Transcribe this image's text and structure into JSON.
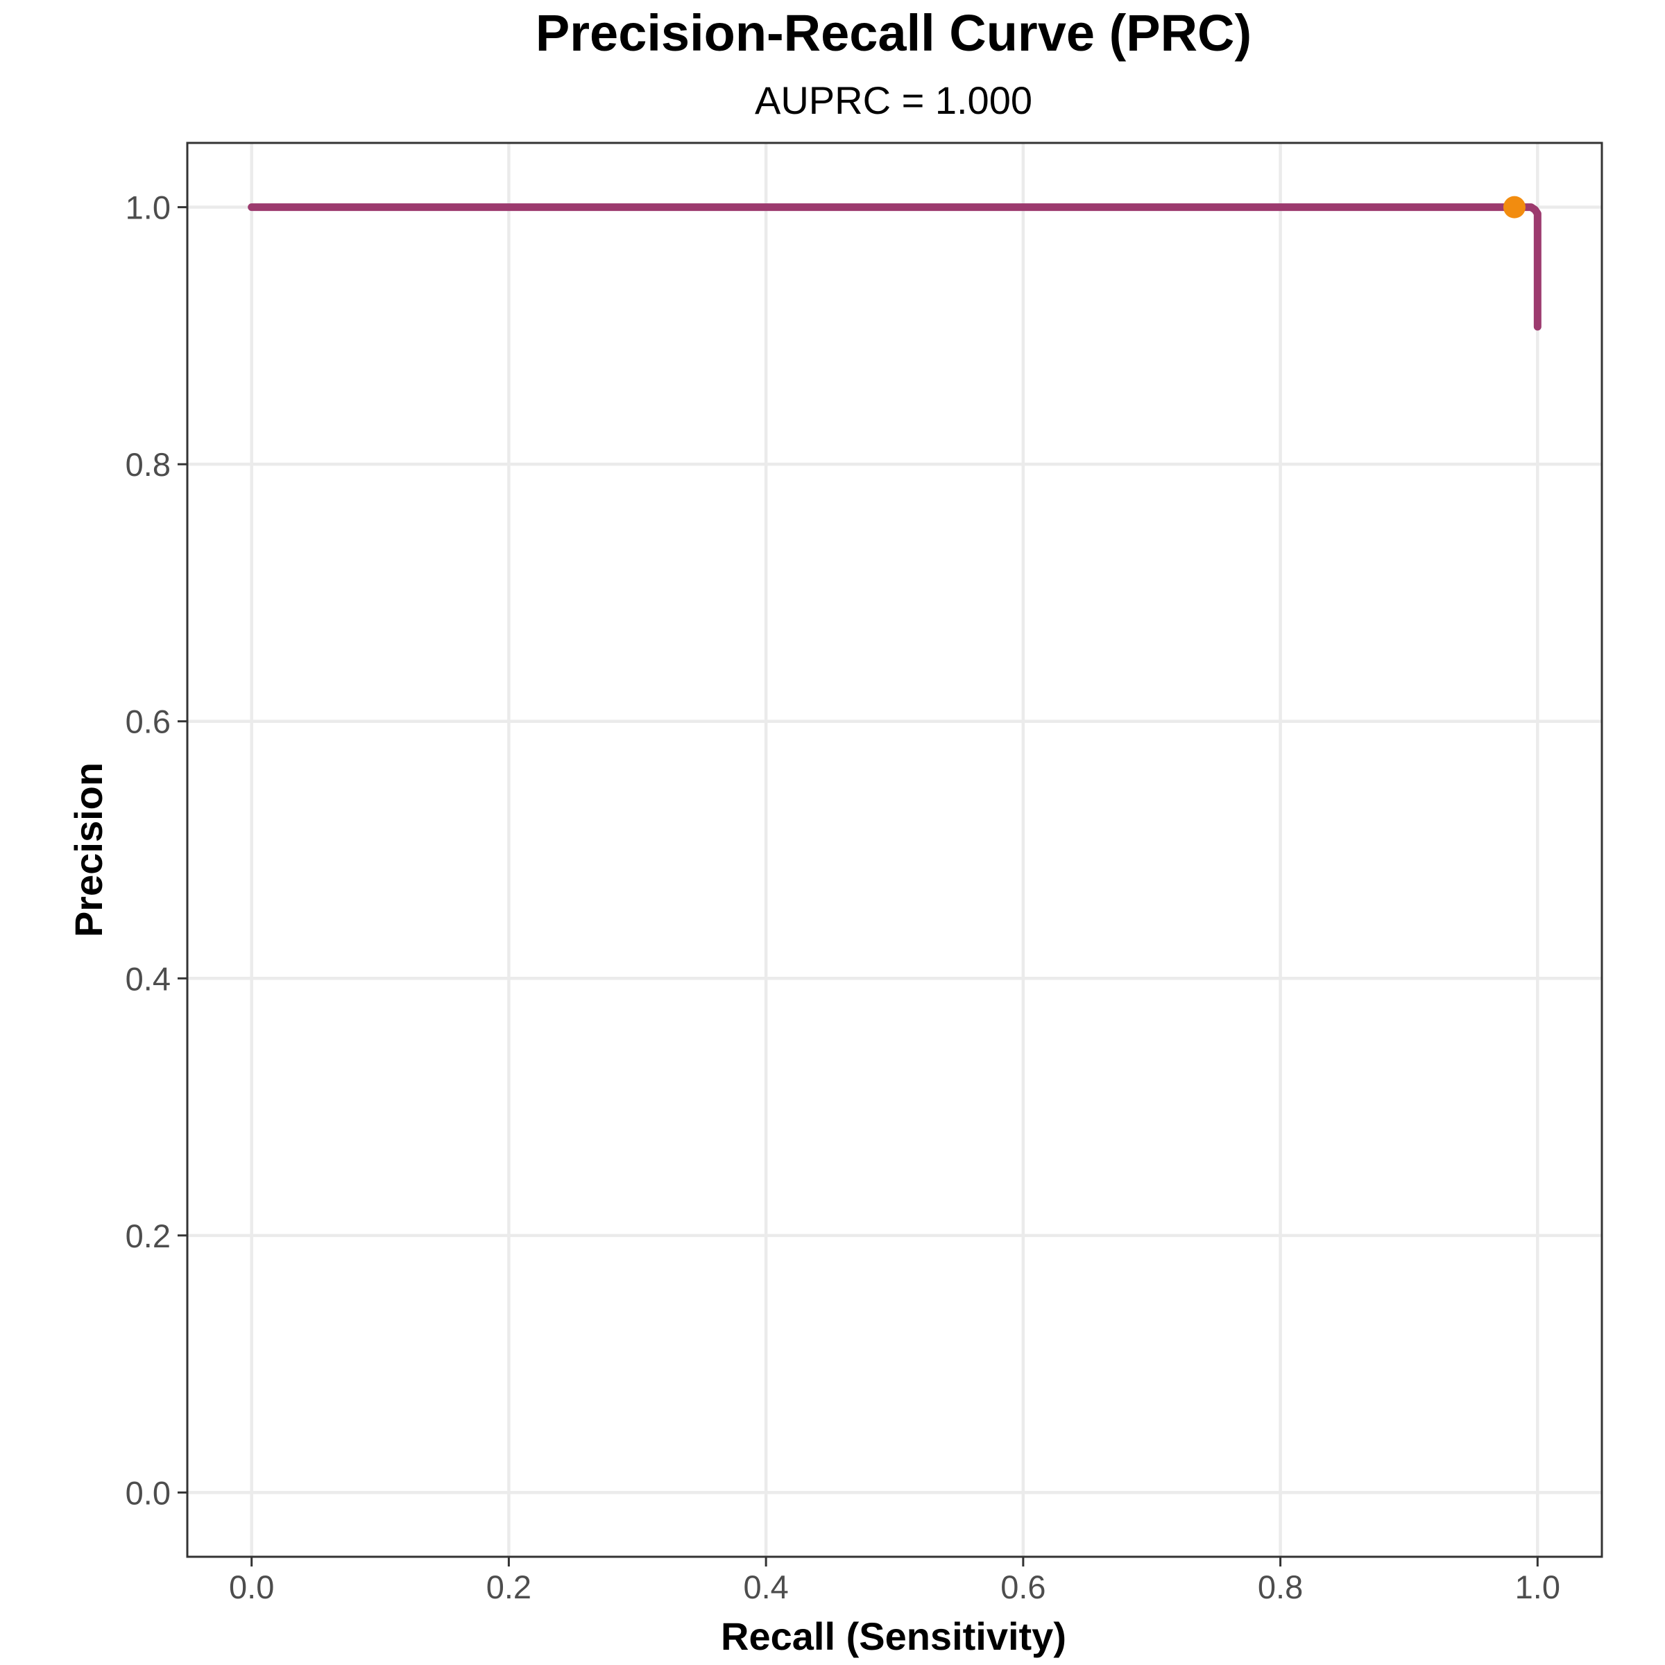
{
  "chart_data": {
    "type": "line",
    "title": "Precision-Recall Curve (PRC)",
    "subtitle": "AUPRC = 1.000",
    "xlabel": "Recall (Sensitivity)",
    "ylabel": "Precision",
    "xlim": [
      -0.05,
      1.05
    ],
    "ylim": [
      -0.05,
      1.05
    ],
    "x_ticks": [
      0.0,
      0.2,
      0.4,
      0.6,
      0.8,
      1.0
    ],
    "x_tick_labels": [
      "0.0",
      "0.2",
      "0.4",
      "0.6",
      "0.8",
      "1.0"
    ],
    "y_ticks": [
      0.0,
      0.2,
      0.4,
      0.6,
      0.8,
      1.0
    ],
    "y_tick_labels": [
      "0.0",
      "0.2",
      "0.4",
      "0.6",
      "0.8",
      "1.0"
    ],
    "grid": true,
    "series": [
      {
        "x": [
          0.0,
          0.98,
          0.995,
          0.998,
          1.0,
          1.0
        ],
        "y": [
          1.0,
          1.0,
          1.0,
          0.998,
          0.995,
          0.907
        ],
        "color": "#9c3a6e"
      }
    ],
    "highlight_point": {
      "x": 0.982,
      "y": 1.0,
      "color": "#f28c0f"
    },
    "colors": {
      "curve": "#9c3a6e",
      "point": "#f28c0f",
      "grid": "#ebebeb",
      "border": "#333333",
      "tick_text": "#4d4d4d"
    }
  }
}
